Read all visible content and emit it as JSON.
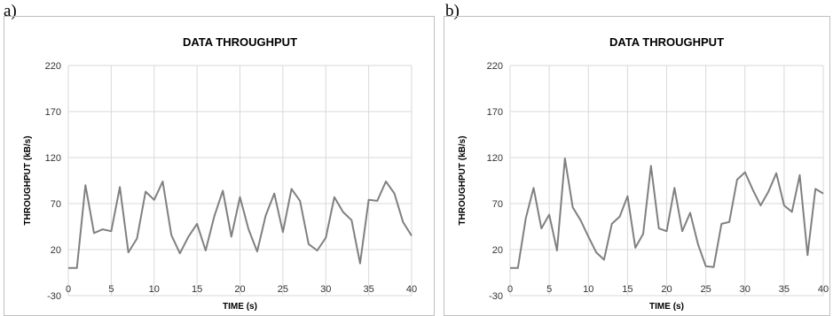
{
  "chart_data": [
    {
      "panel_label": "a)",
      "type": "line",
      "title": "DATA THROUGHPUT",
      "xlabel": "TIME (s)",
      "ylabel": "THROUGHPUT (kB/s)",
      "xlim": [
        0,
        40
      ],
      "ylim": [
        -30,
        220
      ],
      "xticks": [
        0,
        5,
        10,
        15,
        20,
        25,
        30,
        35,
        40
      ],
      "yticks": [
        -30,
        20,
        70,
        120,
        170,
        220
      ],
      "grid": true,
      "series_color": "#808080",
      "series": [
        {
          "x": [
            0,
            1,
            2,
            3,
            4,
            5,
            6,
            7,
            8,
            9,
            10,
            11,
            12,
            13,
            14,
            15,
            16,
            17,
            18,
            19,
            20,
            21,
            22,
            23,
            24,
            25,
            26,
            27,
            28,
            29,
            30,
            31,
            32,
            33,
            34,
            35,
            36,
            37,
            38,
            39,
            40
          ],
          "values": [
            0,
            0,
            90,
            38,
            42,
            40,
            88,
            17,
            32,
            83,
            74,
            94,
            36,
            16,
            34,
            48,
            19,
            56,
            84,
            34,
            77,
            42,
            18,
            57,
            81,
            39,
            86,
            73,
            26,
            19,
            33,
            77,
            61,
            52,
            5,
            74,
            73,
            94,
            81,
            50,
            35
          ]
        }
      ]
    },
    {
      "panel_label": "b)",
      "type": "line",
      "title": "DATA THROUGHPUT",
      "xlabel": "TIME (s)",
      "ylabel": "THROUGHPUT (kB/s)",
      "xlim": [
        0,
        40
      ],
      "ylim": [
        -30,
        220
      ],
      "xticks": [
        0,
        5,
        10,
        15,
        20,
        25,
        30,
        35,
        40
      ],
      "yticks": [
        -30,
        20,
        70,
        120,
        170,
        220
      ],
      "grid": true,
      "series_color": "#808080",
      "series": [
        {
          "x": [
            0,
            1,
            2,
            3,
            4,
            5,
            6,
            7,
            8,
            9,
            10,
            11,
            12,
            13,
            14,
            15,
            16,
            17,
            18,
            19,
            20,
            21,
            22,
            23,
            24,
            25,
            26,
            27,
            28,
            29,
            30,
            31,
            32,
            33,
            34,
            35,
            36,
            37,
            38,
            39,
            40
          ],
          "values": [
            0,
            0,
            54,
            87,
            43,
            58,
            19,
            119,
            66,
            52,
            34,
            17,
            9,
            48,
            56,
            78,
            22,
            37,
            111,
            43,
            40,
            87,
            40,
            60,
            26,
            2,
            1,
            48,
            50,
            96,
            104,
            85,
            68,
            83,
            103,
            68,
            61,
            101,
            14,
            86,
            81
          ]
        }
      ]
    }
  ]
}
